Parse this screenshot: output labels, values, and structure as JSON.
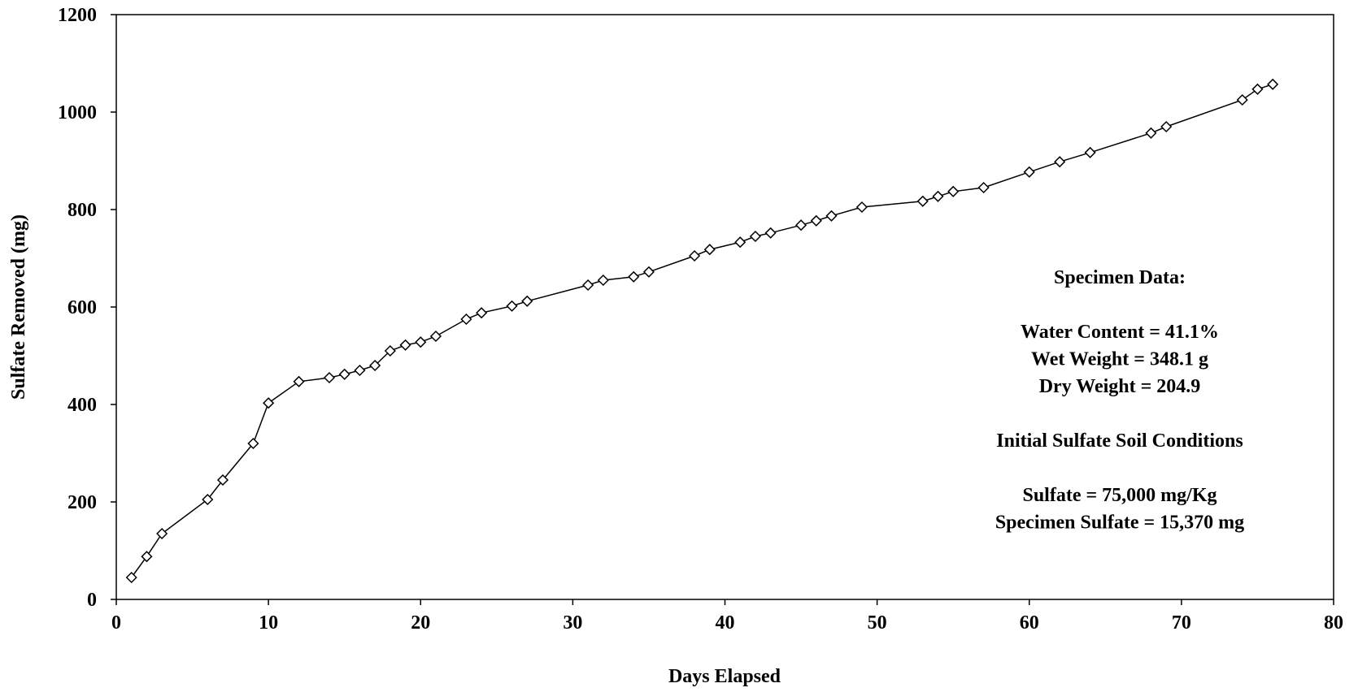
{
  "chart_data": {
    "type": "line",
    "xlabel": "Days Elapsed",
    "ylabel": "Sulfate Removed (mg)",
    "xlim": [
      0,
      80
    ],
    "ylim": [
      0,
      1200
    ],
    "xticks": [
      0,
      10,
      20,
      30,
      40,
      50,
      60,
      70,
      80
    ],
    "yticks": [
      0,
      200,
      400,
      600,
      800,
      1000,
      1200
    ],
    "grid": false,
    "legend": "none",
    "marker": "diamond",
    "line_color": "#000000",
    "series": [
      {
        "x": [
          1,
          2,
          3,
          6,
          7,
          9,
          10,
          12,
          14,
          15,
          16,
          17,
          18,
          19,
          20,
          21,
          23,
          24,
          26,
          27,
          31,
          32,
          34,
          35,
          38,
          39,
          41,
          42,
          43,
          45,
          46,
          47,
          49,
          53,
          54,
          55,
          57,
          60,
          62,
          64,
          68,
          69,
          74,
          75,
          76
        ],
        "y": [
          45,
          88,
          135,
          205,
          245,
          320,
          403,
          447,
          455,
          462,
          470,
          480,
          510,
          522,
          528,
          540,
          575,
          588,
          602,
          612,
          645,
          655,
          662,
          672,
          705,
          718,
          733,
          745,
          752,
          768,
          777,
          787,
          805,
          817,
          827,
          837,
          845,
          877,
          898,
          917,
          957,
          970,
          1025,
          1047,
          1057
        ]
      }
    ],
    "annotations": [
      "Specimen Data:",
      "",
      "Water Content = 41.1%",
      "Wet Weight = 348.1 g",
      "Dry Weight = 204.9",
      "",
      "Initial Sulfate Soil Conditions",
      "",
      "Sulfate = 75,000 mg/Kg",
      "Specimen Sulfate = 15,370 mg"
    ]
  }
}
